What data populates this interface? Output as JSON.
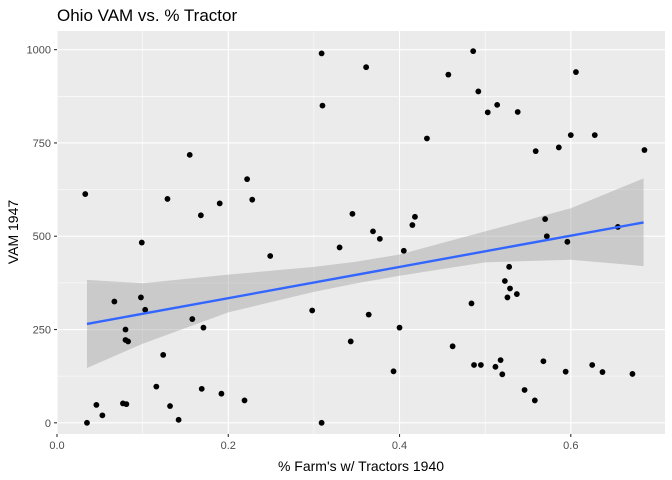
{
  "chart_data": {
    "type": "scatter",
    "title": "Ohio VAM vs. % Tractor",
    "xlabel": "% Farm's w/ Tractors 1940",
    "ylabel": "VAM 1947",
    "xlim": [
      0,
      0.71
    ],
    "ylim": [
      -30,
      1050
    ],
    "x_ticks": [
      0.0,
      0.2,
      0.4,
      0.6
    ],
    "x_tick_labels": [
      "0.0",
      "0.2",
      "0.4",
      "0.6"
    ],
    "y_ticks": [
      0,
      250,
      500,
      750,
      1000
    ],
    "y_tick_labels": [
      "0",
      "250",
      "500",
      "750",
      "1000"
    ],
    "grid": true,
    "colors": {
      "panel": "#ebebeb",
      "grid": "#ffffff",
      "point": "#000000",
      "fit_line": "#3366ff",
      "ribbon": "#999999"
    },
    "fit": {
      "x": [
        0.035,
        0.685
      ],
      "y": [
        265,
        537
      ],
      "band_x": [
        0.035,
        0.1,
        0.2,
        0.3,
        0.35,
        0.4,
        0.5,
        0.6,
        0.685
      ],
      "band_lower": [
        147,
        212,
        296,
        351,
        374,
        394,
        430,
        437,
        420
      ],
      "band_upper": [
        383,
        374,
        397,
        418,
        432,
        451,
        513,
        575,
        655
      ]
    },
    "series": [
      {
        "points": [
          [
            0.033,
            613
          ],
          [
            0.035,
            0
          ],
          [
            0.046,
            48
          ],
          [
            0.053,
            20
          ],
          [
            0.067,
            325
          ],
          [
            0.077,
            52
          ],
          [
            0.08,
            250
          ],
          [
            0.08,
            222
          ],
          [
            0.081,
            50
          ],
          [
            0.083,
            218
          ],
          [
            0.098,
            336
          ],
          [
            0.099,
            483
          ],
          [
            0.103,
            303
          ],
          [
            0.116,
            97
          ],
          [
            0.124,
            182
          ],
          [
            0.129,
            600
          ],
          [
            0.132,
            45
          ],
          [
            0.142,
            8
          ],
          [
            0.155,
            718
          ],
          [
            0.158,
            278
          ],
          [
            0.168,
            556
          ],
          [
            0.169,
            91
          ],
          [
            0.171,
            255
          ],
          [
            0.19,
            588
          ],
          [
            0.192,
            78
          ],
          [
            0.219,
            60
          ],
          [
            0.222,
            653
          ],
          [
            0.228,
            598
          ],
          [
            0.249,
            447
          ],
          [
            0.298,
            301
          ],
          [
            0.309,
            0
          ],
          [
            0.309,
            990
          ],
          [
            0.31,
            850
          ],
          [
            0.33,
            470
          ],
          [
            0.343,
            218
          ],
          [
            0.345,
            560
          ],
          [
            0.361,
            953
          ],
          [
            0.364,
            290
          ],
          [
            0.369,
            513
          ],
          [
            0.377,
            493
          ],
          [
            0.393,
            138
          ],
          [
            0.4,
            255
          ],
          [
            0.405,
            461
          ],
          [
            0.415,
            530
          ],
          [
            0.418,
            552
          ],
          [
            0.432,
            762
          ],
          [
            0.457,
            933
          ],
          [
            0.462,
            205
          ],
          [
            0.484,
            320
          ],
          [
            0.486,
            996
          ],
          [
            0.487,
            155
          ],
          [
            0.492,
            888
          ],
          [
            0.495,
            155
          ],
          [
            0.503,
            832
          ],
          [
            0.512,
            150
          ],
          [
            0.514,
            852
          ],
          [
            0.518,
            168
          ],
          [
            0.52,
            130
          ],
          [
            0.523,
            380
          ],
          [
            0.526,
            336
          ],
          [
            0.528,
            418
          ],
          [
            0.529,
            360
          ],
          [
            0.537,
            345
          ],
          [
            0.538,
            833
          ],
          [
            0.546,
            88
          ],
          [
            0.558,
            60
          ],
          [
            0.559,
            728
          ],
          [
            0.568,
            165
          ],
          [
            0.57,
            546
          ],
          [
            0.572,
            500
          ],
          [
            0.586,
            738
          ],
          [
            0.594,
            137
          ],
          [
            0.596,
            485
          ],
          [
            0.6,
            771
          ],
          [
            0.606,
            940
          ],
          [
            0.625,
            155
          ],
          [
            0.628,
            771
          ],
          [
            0.637,
            136
          ],
          [
            0.655,
            525
          ],
          [
            0.672,
            131
          ],
          [
            0.686,
            731
          ]
        ]
      }
    ]
  }
}
